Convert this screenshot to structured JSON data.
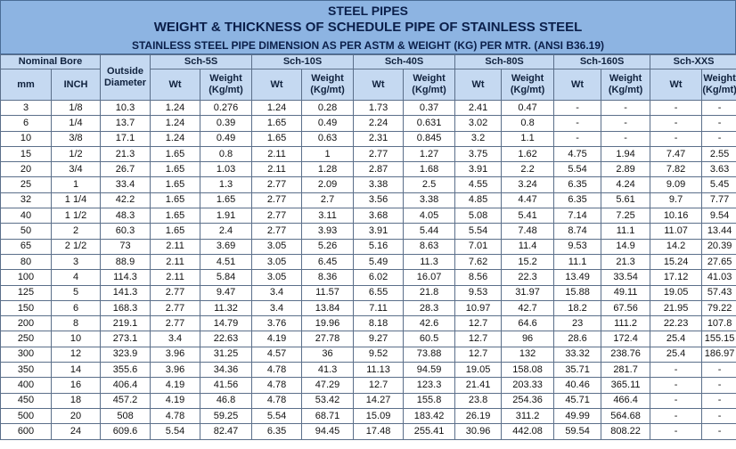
{
  "titles": {
    "line1": "STEEL PIPES",
    "line2": "WEIGHT & THICKNESS OF SCHEDULE PIPE OF STAINLESS STEEL",
    "line3": "STAINLESS STEEL PIPE DIMENSION AS PER ASTM & WEIGHT (KG) PER MTR. (ANSI B36.19)"
  },
  "header": {
    "nominal_bore": "Nominal Bore",
    "outside_diameter": "Outside Diameter",
    "mm": "mm",
    "inch": "INCH",
    "wt": "Wt",
    "weight": "Weight (Kg/mt)",
    "schedules": [
      "Sch-5S",
      "Sch-10S",
      "Sch-40S",
      "Sch-80S",
      "Sch-160S",
      "Sch-XXS"
    ]
  },
  "rows": [
    [
      "3",
      "1/8",
      "10.3",
      "1.24",
      "0.276",
      "1.24",
      "0.28",
      "1.73",
      "0.37",
      "2.41",
      "0.47",
      "-",
      "-",
      "-",
      "-"
    ],
    [
      "6",
      "1/4",
      "13.7",
      "1.24",
      "0.39",
      "1.65",
      "0.49",
      "2.24",
      "0.631",
      "3.02",
      "0.8",
      "-",
      "-",
      "-",
      "-"
    ],
    [
      "10",
      "3/8",
      "17.1",
      "1.24",
      "0.49",
      "1.65",
      "0.63",
      "2.31",
      "0.845",
      "3.2",
      "1.1",
      "-",
      "-",
      "-",
      "-"
    ],
    [
      "15",
      "1/2",
      "21.3",
      "1.65",
      "0.8",
      "2.11",
      "1",
      "2.77",
      "1.27",
      "3.75",
      "1.62",
      "4.75",
      "1.94",
      "7.47",
      "2.55"
    ],
    [
      "20",
      "3/4",
      "26.7",
      "1.65",
      "1.03",
      "2.11",
      "1.28",
      "2.87",
      "1.68",
      "3.91",
      "2.2",
      "5.54",
      "2.89",
      "7.82",
      "3.63"
    ],
    [
      "25",
      "1",
      "33.4",
      "1.65",
      "1.3",
      "2.77",
      "2.09",
      "3.38",
      "2.5",
      "4.55",
      "3.24",
      "6.35",
      "4.24",
      "9.09",
      "5.45"
    ],
    [
      "32",
      "1 1/4",
      "42.2",
      "1.65",
      "1.65",
      "2.77",
      "2.7",
      "3.56",
      "3.38",
      "4.85",
      "4.47",
      "6.35",
      "5.61",
      "9.7",
      "7.77"
    ],
    [
      "40",
      "1 1/2",
      "48.3",
      "1.65",
      "1.91",
      "2.77",
      "3.11",
      "3.68",
      "4.05",
      "5.08",
      "5.41",
      "7.14",
      "7.25",
      "10.16",
      "9.54"
    ],
    [
      "50",
      "2",
      "60.3",
      "1.65",
      "2.4",
      "2.77",
      "3.93",
      "3.91",
      "5.44",
      "5.54",
      "7.48",
      "8.74",
      "11.1",
      "11.07",
      "13.44"
    ],
    [
      "65",
      "2 1/2",
      "73",
      "2.11",
      "3.69",
      "3.05",
      "5.26",
      "5.16",
      "8.63",
      "7.01",
      "11.4",
      "9.53",
      "14.9",
      "14.2",
      "20.39"
    ],
    [
      "80",
      "3",
      "88.9",
      "2.11",
      "4.51",
      "3.05",
      "6.45",
      "5.49",
      "11.3",
      "7.62",
      "15.2",
      "11.1",
      "21.3",
      "15.24",
      "27.65"
    ],
    [
      "100",
      "4",
      "114.3",
      "2.11",
      "5.84",
      "3.05",
      "8.36",
      "6.02",
      "16.07",
      "8.56",
      "22.3",
      "13.49",
      "33.54",
      "17.12",
      "41.03"
    ],
    [
      "125",
      "5",
      "141.3",
      "2.77",
      "9.47",
      "3.4",
      "11.57",
      "6.55",
      "21.8",
      "9.53",
      "31.97",
      "15.88",
      "49.11",
      "19.05",
      "57.43"
    ],
    [
      "150",
      "6",
      "168.3",
      "2.77",
      "11.32",
      "3.4",
      "13.84",
      "7.11",
      "28.3",
      "10.97",
      "42.7",
      "18.2",
      "67.56",
      "21.95",
      "79.22"
    ],
    [
      "200",
      "8",
      "219.1",
      "2.77",
      "14.79",
      "3.76",
      "19.96",
      "8.18",
      "42.6",
      "12.7",
      "64.6",
      "23",
      "111.2",
      "22.23",
      "107.8"
    ],
    [
      "250",
      "10",
      "273.1",
      "3.4",
      "22.63",
      "4.19",
      "27.78",
      "9.27",
      "60.5",
      "12.7",
      "96",
      "28.6",
      "172.4",
      "25.4",
      "155.15"
    ],
    [
      "300",
      "12",
      "323.9",
      "3.96",
      "31.25",
      "4.57",
      "36",
      "9.52",
      "73.88",
      "12.7",
      "132",
      "33.32",
      "238.76",
      "25.4",
      "186.97"
    ],
    [
      "350",
      "14",
      "355.6",
      "3.96",
      "34.36",
      "4.78",
      "41.3",
      "11.13",
      "94.59",
      "19.05",
      "158.08",
      "35.71",
      "281.7",
      "-",
      "-"
    ],
    [
      "400",
      "16",
      "406.4",
      "4.19",
      "41.56",
      "4.78",
      "47.29",
      "12.7",
      "123.3",
      "21.41",
      "203.33",
      "40.46",
      "365.11",
      "-",
      "-"
    ],
    [
      "450",
      "18",
      "457.2",
      "4.19",
      "46.8",
      "4.78",
      "53.42",
      "14.27",
      "155.8",
      "23.8",
      "254.36",
      "45.71",
      "466.4",
      "-",
      "-"
    ],
    [
      "500",
      "20",
      "508",
      "4.78",
      "59.25",
      "5.54",
      "68.71",
      "15.09",
      "183.42",
      "26.19",
      "311.2",
      "49.99",
      "564.68",
      "-",
      "-"
    ],
    [
      "600",
      "24",
      "609.6",
      "5.54",
      "82.47",
      "6.35",
      "94.45",
      "17.48",
      "255.41",
      "30.96",
      "442.08",
      "59.54",
      "808.22",
      "-",
      "-"
    ]
  ]
}
